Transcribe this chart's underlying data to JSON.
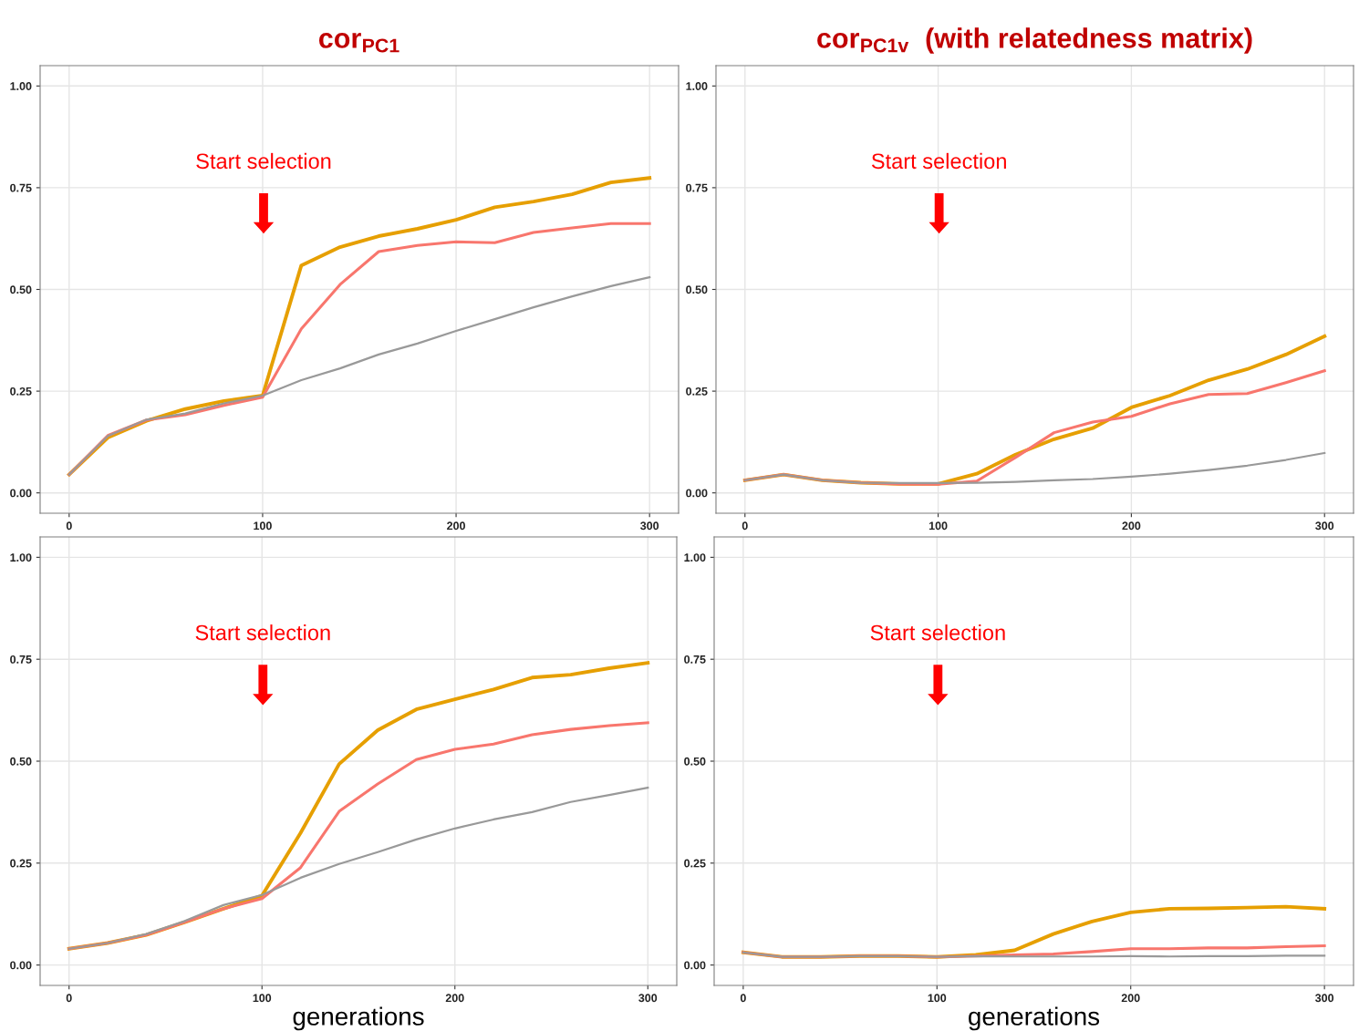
{
  "chart_data": [
    {
      "type": "line",
      "title": "cor$_{PC1}$",
      "x": [
        0,
        20,
        40,
        60,
        80,
        100,
        120,
        140,
        160,
        180,
        200,
        220,
        240,
        260,
        280,
        300
      ],
      "series": [
        {
          "color": "#e69f00",
          "values": [
            0.045,
            0.136,
            0.177,
            0.206,
            0.226,
            0.239,
            0.559,
            0.604,
            0.631,
            0.649,
            0.671,
            0.702,
            0.716,
            0.734,
            0.763,
            0.774
          ]
        },
        {
          "color": "#f8766d",
          "values": [
            0.045,
            0.141,
            0.179,
            0.192,
            0.215,
            0.235,
            0.403,
            0.512,
            0.593,
            0.608,
            0.617,
            0.615,
            0.64,
            0.651,
            0.662,
            0.662
          ]
        },
        {
          "color": "#999999",
          "values": [
            0.045,
            0.14,
            0.18,
            0.195,
            0.22,
            0.239,
            0.277,
            0.306,
            0.34,
            0.367,
            0.398,
            0.427,
            0.456,
            0.483,
            0.508,
            0.53
          ]
        }
      ],
      "xlim": [
        -15,
        315
      ],
      "ylim": [
        -0.05,
        1.05
      ],
      "xticks": [
        0,
        100,
        200,
        300
      ],
      "yticks": [
        {
          "value": 0,
          "label": "0.00"
        },
        {
          "value": 0.25,
          "label": "0.25"
        },
        {
          "value": 0.5,
          "label": "0.50"
        },
        {
          "value": 0.75,
          "label": "0.75"
        },
        {
          "value": 1,
          "label": "1.00"
        }
      ],
      "grid": true,
      "annotations": [
        "Start selection"
      ]
    },
    {
      "type": "line",
      "title": "cor$_{PC1v}$  (with relatedness matrix)",
      "x": [
        0,
        20,
        40,
        60,
        80,
        100,
        120,
        140,
        160,
        180,
        200,
        220,
        240,
        260,
        280,
        300
      ],
      "series": [
        {
          "color": "#e69f00",
          "values": [
            0.031,
            0.045,
            0.031,
            0.025,
            0.022,
            0.022,
            0.047,
            0.094,
            0.132,
            0.159,
            0.21,
            0.239,
            0.277,
            0.304,
            0.34,
            0.385
          ]
        },
        {
          "color": "#f8766d",
          "values": [
            0.031,
            0.045,
            0.031,
            0.025,
            0.022,
            0.021,
            0.029,
            0.087,
            0.148,
            0.174,
            0.188,
            0.219,
            0.242,
            0.244,
            0.271,
            0.3
          ]
        },
        {
          "color": "#999999",
          "values": [
            0.031,
            0.045,
            0.031,
            0.025,
            0.024,
            0.024,
            0.025,
            0.027,
            0.031,
            0.034,
            0.04,
            0.047,
            0.056,
            0.067,
            0.081,
            0.098
          ]
        }
      ],
      "xlim": [
        -15,
        315
      ],
      "ylim": [
        -0.05,
        1.05
      ],
      "xticks": [
        0,
        100,
        200,
        300
      ],
      "yticks": [
        {
          "value": 0,
          "label": "0.00"
        },
        {
          "value": 0.25,
          "label": "0.25"
        },
        {
          "value": 0.5,
          "label": "0.50"
        },
        {
          "value": 0.75,
          "label": "0.75"
        },
        {
          "value": 1,
          "label": "1.00"
        }
      ],
      "grid": true,
      "annotations": [
        "Start selection"
      ]
    },
    {
      "type": "line",
      "xlabel": "generations",
      "x": [
        0,
        20,
        40,
        60,
        80,
        100,
        120,
        140,
        160,
        180,
        200,
        220,
        240,
        260,
        280,
        300
      ],
      "series": [
        {
          "color": "#e69f00",
          "values": [
            0.04,
            0.054,
            0.074,
            0.105,
            0.138,
            0.17,
            0.324,
            0.493,
            0.576,
            0.627,
            0.652,
            0.676,
            0.705,
            0.712,
            0.728,
            0.741
          ]
        },
        {
          "color": "#f8766d",
          "values": [
            0.04,
            0.054,
            0.074,
            0.105,
            0.138,
            0.163,
            0.239,
            0.377,
            0.444,
            0.504,
            0.529,
            0.542,
            0.565,
            0.578,
            0.587,
            0.594
          ]
        },
        {
          "color": "#999999",
          "values": [
            0.04,
            0.054,
            0.076,
            0.108,
            0.147,
            0.172,
            0.214,
            0.248,
            0.277,
            0.308,
            0.335,
            0.357,
            0.375,
            0.4,
            0.417,
            0.435
          ]
        }
      ],
      "xlim": [
        -15,
        315
      ],
      "ylim": [
        -0.05,
        1.05
      ],
      "xticks": [
        0,
        100,
        200,
        300
      ],
      "yticks": [
        {
          "value": 0,
          "label": "0.00"
        },
        {
          "value": 0.25,
          "label": "0.25"
        },
        {
          "value": 0.5,
          "label": "0.50"
        },
        {
          "value": 0.75,
          "label": "0.75"
        },
        {
          "value": 1,
          "label": "1.00"
        }
      ],
      "grid": true,
      "annotations": [
        "Start selection"
      ]
    },
    {
      "type": "line",
      "xlabel": "generations",
      "x": [
        0,
        20,
        40,
        60,
        80,
        100,
        120,
        140,
        160,
        180,
        200,
        220,
        240,
        260,
        280,
        300
      ],
      "series": [
        {
          "color": "#e69f00",
          "values": [
            0.031,
            0.02,
            0.02,
            0.022,
            0.022,
            0.02,
            0.025,
            0.036,
            0.076,
            0.107,
            0.129,
            0.138,
            0.139,
            0.141,
            0.143,
            0.138
          ]
        },
        {
          "color": "#f8766d",
          "values": [
            0.031,
            0.02,
            0.02,
            0.022,
            0.022,
            0.02,
            0.022,
            0.025,
            0.027,
            0.033,
            0.04,
            0.04,
            0.042,
            0.042,
            0.045,
            0.047
          ]
        },
        {
          "color": "#999999",
          "values": [
            0.031,
            0.02,
            0.02,
            0.022,
            0.022,
            0.02,
            0.022,
            0.021,
            0.021,
            0.021,
            0.022,
            0.021,
            0.022,
            0.022,
            0.023,
            0.023
          ]
        }
      ],
      "xlim": [
        -15,
        315
      ],
      "ylim": [
        -0.05,
        1.05
      ],
      "xticks": [
        0,
        100,
        200,
        300
      ],
      "yticks": [
        {
          "value": 0,
          "label": "0.00"
        },
        {
          "value": 0.25,
          "label": "0.25"
        },
        {
          "value": 0.5,
          "label": "0.50"
        },
        {
          "value": 0.75,
          "label": "0.75"
        },
        {
          "value": 1,
          "label": "1.00"
        }
      ],
      "grid": true,
      "annotations": [
        "Start selection"
      ]
    }
  ]
}
